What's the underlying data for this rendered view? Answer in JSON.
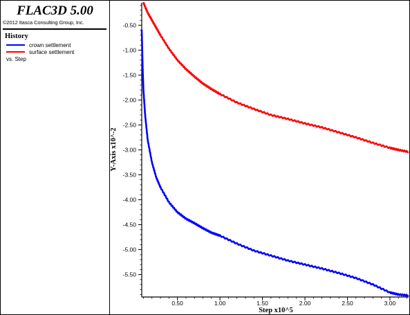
{
  "app": {
    "title": "FLAC3D 5.00",
    "copyright": "©2012 Itasca Consulting Group, Inc."
  },
  "legend": {
    "title": "History",
    "items": [
      {
        "label": "crown settlement",
        "color": "#0000ff"
      },
      {
        "label": "surface settlement",
        "color": "#ff0000"
      }
    ],
    "vs_label": "vs. Step"
  },
  "chart_data": {
    "type": "line",
    "title": "",
    "xlabel": "Step x10^5",
    "ylabel": "Y-Axis x10^-2",
    "xlim": [
      0.08,
      3.22
    ],
    "ylim": [
      -5.95,
      -0.05
    ],
    "xticks": [
      0.5,
      1.0,
      1.5,
      2.0,
      2.5,
      3.0
    ],
    "xtick_labels": [
      "0.50",
      "1.00",
      "1.50",
      "2.00",
      "2.50",
      "3.00"
    ],
    "yticks": [
      -0.5,
      -1.0,
      -1.5,
      -2.0,
      -2.5,
      -3.0,
      -3.5,
      -4.0,
      -4.5,
      -5.0,
      -5.5
    ],
    "ytick_labels": [
      "-0.50",
      "-1.00",
      "-1.50",
      "-2.00",
      "-2.50",
      "-3.00",
      "-3.50",
      "-4.00",
      "-4.50",
      "-5.00",
      "-5.50"
    ],
    "grid": false,
    "series": [
      {
        "name": "crown settlement",
        "color": "#0000ff",
        "x": [
          0.08,
          0.09,
          0.1,
          0.12,
          0.15,
          0.2,
          0.25,
          0.3,
          0.4,
          0.5,
          0.6,
          0.7,
          0.8,
          0.9,
          1.0,
          1.2,
          1.4,
          1.6,
          1.8,
          2.0,
          2.2,
          2.4,
          2.6,
          2.8,
          3.0,
          3.1,
          3.22
        ],
        "y": [
          -0.6,
          -1.3,
          -1.8,
          -2.3,
          -2.8,
          -3.25,
          -3.55,
          -3.75,
          -4.05,
          -4.25,
          -4.38,
          -4.47,
          -4.57,
          -4.66,
          -4.72,
          -4.88,
          -5.02,
          -5.12,
          -5.22,
          -5.3,
          -5.38,
          -5.47,
          -5.57,
          -5.7,
          -5.86,
          -5.9,
          -5.92
        ]
      },
      {
        "name": "surface settlement",
        "color": "#ff0000",
        "x": [
          0.1,
          0.15,
          0.2,
          0.25,
          0.3,
          0.4,
          0.5,
          0.6,
          0.7,
          0.8,
          0.9,
          1.0,
          1.2,
          1.4,
          1.6,
          1.8,
          2.0,
          2.2,
          2.4,
          2.6,
          2.8,
          3.0,
          3.1,
          3.22
        ],
        "y": [
          -0.05,
          -0.25,
          -0.4,
          -0.55,
          -0.7,
          -0.97,
          -1.2,
          -1.38,
          -1.53,
          -1.67,
          -1.78,
          -1.88,
          -2.05,
          -2.18,
          -2.3,
          -2.38,
          -2.47,
          -2.55,
          -2.65,
          -2.75,
          -2.86,
          -2.96,
          -3.0,
          -3.04
        ]
      }
    ]
  }
}
